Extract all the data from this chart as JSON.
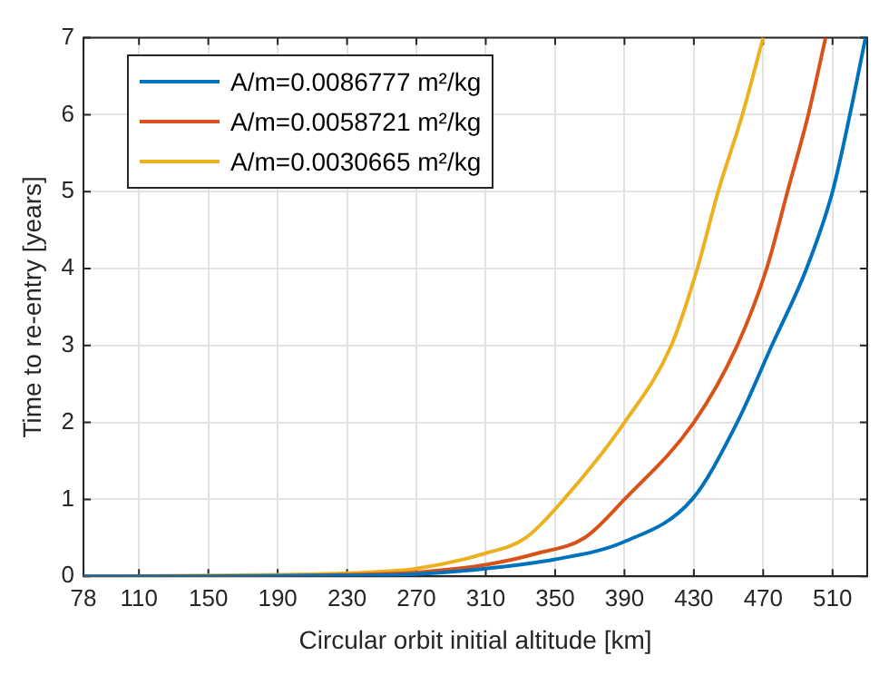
{
  "chart_data": {
    "type": "line",
    "xlabel": "Circular orbit initial altitude [km]",
    "ylabel": "Time to re-entry [years]",
    "xlim": [
      78,
      530
    ],
    "xticks": [
      78,
      110,
      150,
      190,
      230,
      270,
      310,
      350,
      390,
      430,
      470,
      510
    ],
    "ylim": [
      0,
      7
    ],
    "yticks": [
      0,
      1,
      2,
      3,
      4,
      5,
      6,
      7
    ],
    "grid": true,
    "legend": "top left",
    "marker": "none",
    "line_style": "solid",
    "series": [
      {
        "name": "A/m=0.0086777 m²/kg",
        "color": "#0072bd",
        "x": [
          78,
          150,
          230,
          270,
          310,
          350,
          390,
          429,
          455,
          475,
          495,
          510,
          520,
          529
        ],
        "values": [
          0,
          0,
          0.01,
          0.03,
          0.1,
          0.22,
          0.45,
          1,
          2,
          3,
          4,
          5,
          6,
          7
        ]
      },
      {
        "name": "A/m=0.0058721 m²/kg",
        "color": "#d95319",
        "x": [
          78,
          150,
          230,
          270,
          310,
          340,
          367,
          390,
          430,
          455,
          472,
          484,
          496,
          506
        ],
        "values": [
          0,
          0,
          0.02,
          0.05,
          0.15,
          0.3,
          0.5,
          1,
          2,
          3,
          4,
          5,
          6,
          7
        ]
      },
      {
        "name": "A/m=0.0030665 m²/kg",
        "color": "#edb120",
        "x": [
          78,
          150,
          190,
          230,
          270,
          310,
          333,
          355,
          390,
          417,
          432,
          444,
          458,
          470
        ],
        "values": [
          0,
          0.01,
          0.02,
          0.04,
          0.1,
          0.3,
          0.5,
          1,
          2,
          3,
          4,
          5,
          6,
          7
        ]
      }
    ]
  }
}
